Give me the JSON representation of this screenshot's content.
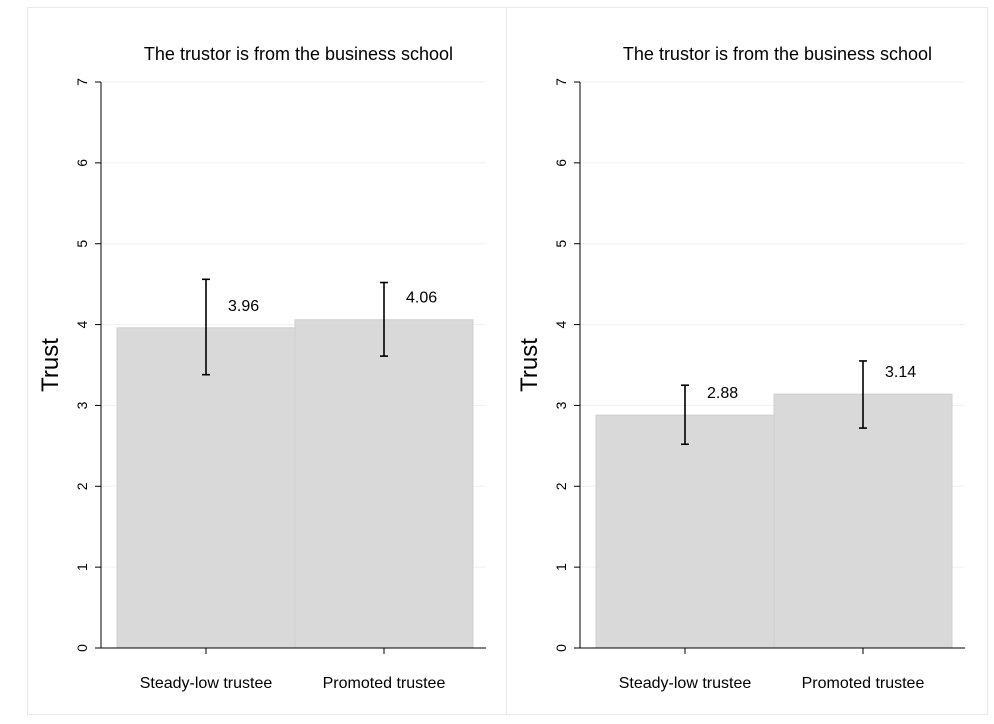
{
  "chart_data": [
    {
      "type": "bar",
      "title": "The trustor is from the business school",
      "ylabel": "Trust",
      "xlabel": "",
      "categories": [
        "Steady-low trustee",
        "Promoted trustee"
      ],
      "values": [
        3.96,
        4.06
      ],
      "value_labels": [
        "3.96",
        "4.06"
      ],
      "error_low": [
        3.38,
        3.61
      ],
      "error_high": [
        4.56,
        4.52
      ],
      "ylim": [
        0,
        7
      ],
      "yticks": [
        "0",
        "1",
        "2",
        "3",
        "4",
        "5",
        "6",
        "7"
      ],
      "grid": true,
      "bar_color": "#d9d9d9"
    },
    {
      "type": "bar",
      "title": "The trustor is from the business school",
      "ylabel": "Trust",
      "xlabel": "",
      "categories": [
        "Steady-low trustee",
        "Promoted trustee"
      ],
      "values": [
        2.88,
        3.14
      ],
      "value_labels": [
        "2.88",
        "3.14"
      ],
      "error_low": [
        2.52,
        2.72
      ],
      "error_high": [
        3.25,
        3.55
      ],
      "ylim": [
        0,
        7
      ],
      "yticks": [
        "0",
        "1",
        "2",
        "3",
        "4",
        "5",
        "6",
        "7"
      ],
      "grid": true,
      "bar_color": "#d9d9d9"
    }
  ]
}
